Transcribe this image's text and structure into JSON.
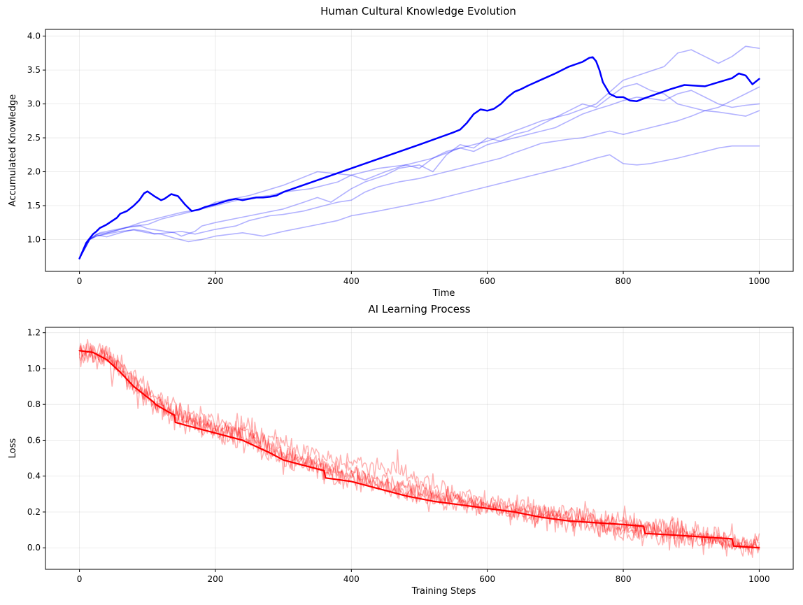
{
  "figure": {
    "suptitle": "Human Cultural Knowledge Evolution"
  },
  "chart_data": [
    {
      "type": "line",
      "title": "",
      "xlabel": "Time",
      "ylabel": "Accumulated Knowledge",
      "xlim": [
        -50,
        1050
      ],
      "ylim": [
        0.53,
        4.1
      ],
      "xticks": [
        0,
        200,
        400,
        600,
        800,
        1000
      ],
      "yticks": [
        1.0,
        1.5,
        2.0,
        2.5,
        3.0,
        3.5,
        4.0
      ],
      "xtick_labels": [
        "0",
        "200",
        "400",
        "600",
        "800",
        "1000"
      ],
      "ytick_labels": [
        "1.0",
        "1.5",
        "2.0",
        "2.5",
        "3.0",
        "3.5",
        "4.0"
      ],
      "grid": true,
      "series": [
        {
          "color": "#0000ff",
          "opacity": 1.0,
          "width": 2.5,
          "x": [
            0,
            10,
            20,
            25,
            30,
            40,
            55,
            60,
            70,
            80,
            88,
            95,
            100,
            110,
            120,
            125,
            135,
            145,
            155,
            165,
            175,
            185,
            200,
            210,
            220,
            230,
            240,
            250,
            260,
            270,
            280,
            290,
            300,
            400,
            500,
            550,
            560,
            570,
            580,
            590,
            600,
            610,
            620,
            630,
            640,
            650,
            660,
            680,
            700,
            720,
            740,
            750,
            755,
            760,
            765,
            770,
            780,
            790,
            800,
            810,
            820,
            830,
            850,
            870,
            890,
            920,
            940,
            960,
            970,
            980,
            990,
            1000
          ],
          "y": [
            0.72,
            0.95,
            1.08,
            1.12,
            1.17,
            1.22,
            1.32,
            1.38,
            1.42,
            1.5,
            1.58,
            1.68,
            1.71,
            1.64,
            1.58,
            1.6,
            1.67,
            1.64,
            1.52,
            1.42,
            1.44,
            1.48,
            1.52,
            1.55,
            1.58,
            1.6,
            1.58,
            1.6,
            1.62,
            1.62,
            1.63,
            1.65,
            1.7,
            2.05,
            2.4,
            2.58,
            2.62,
            2.72,
            2.85,
            2.92,
            2.9,
            2.93,
            3.0,
            3.1,
            3.18,
            3.22,
            3.27,
            3.36,
            3.45,
            3.55,
            3.62,
            3.68,
            3.69,
            3.63,
            3.5,
            3.32,
            3.15,
            3.1,
            3.1,
            3.05,
            3.04,
            3.08,
            3.15,
            3.22,
            3.28,
            3.26,
            3.32,
            3.38,
            3.45,
            3.42,
            3.29,
            3.37
          ]
        },
        {
          "color": "#0000ff",
          "opacity": 0.3,
          "width": 1.6,
          "x": [
            0,
            15,
            30,
            50,
            70,
            90,
            100,
            120,
            140,
            150,
            170,
            180,
            200,
            250,
            300,
            330,
            350,
            370,
            400,
            420,
            450,
            470,
            500,
            520,
            540,
            560,
            580,
            600,
            620,
            640,
            660,
            680,
            700,
            720,
            740,
            760,
            780,
            800,
            820,
            840,
            860,
            880,
            900,
            920,
            940,
            960,
            980,
            1000
          ],
          "y": [
            0.72,
            1.0,
            1.1,
            1.14,
            1.18,
            1.2,
            1.16,
            1.13,
            1.1,
            1.05,
            1.12,
            1.2,
            1.25,
            1.35,
            1.45,
            1.55,
            1.62,
            1.55,
            1.75,
            1.85,
            1.95,
            2.05,
            2.1,
            2.0,
            2.25,
            2.4,
            2.35,
            2.5,
            2.45,
            2.55,
            2.6,
            2.7,
            2.8,
            2.9,
            3.0,
            2.95,
            3.1,
            3.25,
            3.3,
            3.2,
            3.15,
            3.0,
            2.95,
            2.9,
            2.88,
            2.85,
            2.82,
            2.9
          ]
        },
        {
          "color": "#0000ff",
          "opacity": 0.3,
          "width": 1.6,
          "x": [
            0,
            15,
            25,
            40,
            60,
            80,
            100,
            120,
            140,
            160,
            180,
            200,
            240,
            280,
            300,
            340,
            380,
            400,
            420,
            450,
            480,
            500,
            520,
            540,
            560,
            580,
            600,
            620,
            640,
            660,
            680,
            700,
            720,
            740,
            760,
            780,
            800,
            820,
            840,
            860,
            880,
            900,
            920,
            940,
            960,
            980,
            1000
          ],
          "y": [
            0.72,
            1.0,
            1.08,
            1.1,
            1.15,
            1.2,
            1.22,
            1.3,
            1.35,
            1.4,
            1.45,
            1.5,
            1.6,
            1.65,
            1.7,
            1.75,
            1.85,
            1.95,
            1.88,
            2.0,
            2.1,
            2.05,
            2.2,
            2.3,
            2.35,
            2.3,
            2.4,
            2.45,
            2.5,
            2.55,
            2.6,
            2.65,
            2.75,
            2.85,
            2.92,
            2.98,
            3.05,
            3.1,
            3.08,
            3.05,
            3.15,
            3.2,
            3.1,
            3.0,
            2.95,
            2.98,
            3.0
          ]
        },
        {
          "color": "#0000ff",
          "opacity": 0.3,
          "width": 1.6,
          "x": [
            0,
            15,
            25,
            40,
            60,
            80,
            100,
            110,
            130,
            150,
            170,
            200,
            230,
            250,
            280,
            300,
            330,
            360,
            380,
            400,
            420,
            440,
            470,
            500,
            520,
            540,
            560,
            580,
            600,
            620,
            640,
            660,
            680,
            700,
            720,
            740,
            760,
            780,
            800,
            820,
            840,
            860,
            880,
            900,
            920,
            940,
            960,
            980,
            1000
          ],
          "y": [
            0.72,
            1.0,
            1.07,
            1.04,
            1.1,
            1.15,
            1.12,
            1.08,
            1.1,
            1.12,
            1.08,
            1.15,
            1.2,
            1.28,
            1.35,
            1.37,
            1.42,
            1.5,
            1.55,
            1.58,
            1.7,
            1.78,
            1.85,
            1.9,
            1.95,
            2.0,
            2.05,
            2.1,
            2.15,
            2.2,
            2.28,
            2.35,
            2.42,
            2.45,
            2.48,
            2.5,
            2.55,
            2.6,
            2.55,
            2.6,
            2.65,
            2.7,
            2.75,
            2.82,
            2.9,
            2.95,
            3.05,
            3.15,
            3.25
          ]
        },
        {
          "color": "#0000ff",
          "opacity": 0.3,
          "width": 1.6,
          "x": [
            0,
            15,
            25,
            40,
            60,
            80,
            100,
            120,
            140,
            160,
            180,
            200,
            240,
            270,
            300,
            340,
            380,
            400,
            440,
            480,
            520,
            560,
            600,
            640,
            680,
            720,
            760,
            780,
            800,
            820,
            840,
            880,
            920,
            940,
            960,
            980,
            1000
          ],
          "y": [
            0.72,
            1.0,
            1.05,
            1.08,
            1.12,
            1.14,
            1.1,
            1.08,
            1.02,
            0.97,
            1.0,
            1.05,
            1.1,
            1.05,
            1.12,
            1.2,
            1.28,
            1.35,
            1.42,
            1.5,
            1.58,
            1.68,
            1.78,
            1.88,
            1.98,
            2.08,
            2.2,
            2.25,
            2.12,
            2.1,
            2.12,
            2.2,
            2.3,
            2.35,
            2.38,
            2.38,
            2.38
          ]
        },
        {
          "color": "#0000ff",
          "opacity": 0.3,
          "width": 1.6,
          "x": [
            0,
            15,
            25,
            50,
            70,
            90,
            110,
            130,
            150,
            180,
            200,
            250,
            300,
            350,
            400,
            440,
            480,
            520,
            560,
            600,
            640,
            680,
            720,
            760,
            800,
            830,
            860,
            880,
            900,
            920,
            940,
            960,
            980,
            1000
          ],
          "y": [
            0.72,
            1.0,
            1.05,
            1.12,
            1.18,
            1.25,
            1.3,
            1.35,
            1.4,
            1.45,
            1.55,
            1.65,
            1.8,
            2.0,
            1.95,
            2.05,
            2.1,
            2.2,
            2.35,
            2.45,
            2.6,
            2.75,
            2.85,
            3.0,
            3.35,
            3.45,
            3.55,
            3.75,
            3.8,
            3.7,
            3.6,
            3.7,
            3.85,
            3.82
          ]
        }
      ]
    },
    {
      "type": "line",
      "title": "AI Learning Process",
      "xlabel": "Training Steps",
      "ylabel": "Loss",
      "xlim": [
        -50,
        1050
      ],
      "ylim": [
        -0.12,
        1.23
      ],
      "xticks": [
        0,
        200,
        400,
        600,
        800,
        1000
      ],
      "yticks": [
        0.0,
        0.2,
        0.4,
        0.6,
        0.8,
        1.0,
        1.2
      ],
      "xtick_labels": [
        "0",
        "200",
        "400",
        "600",
        "800",
        "1000"
      ],
      "ytick_labels": [
        "0.0",
        "0.2",
        "0.4",
        "0.6",
        "0.8",
        "1.0",
        "1.2"
      ],
      "grid": true,
      "series": [
        {
          "color": "#ff0000",
          "opacity": 1.0,
          "width": 2.2,
          "x": [
            0,
            20,
            40,
            60,
            80,
            100,
            110,
            112,
            130,
            140,
            141,
            160,
            200,
            240,
            280,
            300,
            340,
            360,
            362,
            400,
            440,
            480,
            520,
            560,
            600,
            640,
            680,
            720,
            760,
            800,
            830,
            832,
            880,
            920,
            960,
            962,
            980,
            1000
          ],
          "y": [
            1.1,
            1.09,
            1.05,
            0.98,
            0.9,
            0.84,
            0.81,
            0.8,
            0.76,
            0.74,
            0.7,
            0.68,
            0.64,
            0.6,
            0.53,
            0.49,
            0.45,
            0.43,
            0.39,
            0.37,
            0.33,
            0.29,
            0.26,
            0.24,
            0.22,
            0.2,
            0.17,
            0.15,
            0.14,
            0.13,
            0.12,
            0.08,
            0.07,
            0.06,
            0.05,
            0.01,
            0.005,
            0.0
          ]
        },
        {
          "color": "#ff0000",
          "opacity": 0.3,
          "width": 1.5,
          "noise": 0.025,
          "x": [
            0,
            40,
            80,
            120,
            160,
            200,
            240,
            280,
            320,
            360,
            400,
            440,
            480,
            520,
            560,
            600,
            640,
            680,
            720,
            760,
            800,
            840,
            880,
            920,
            960,
            1000
          ],
          "y": [
            1.1,
            1.07,
            0.93,
            0.78,
            0.72,
            0.68,
            0.64,
            0.57,
            0.5,
            0.45,
            0.42,
            0.38,
            0.34,
            0.3,
            0.27,
            0.24,
            0.21,
            0.19,
            0.16,
            0.14,
            0.11,
            0.09,
            0.07,
            0.05,
            0.03,
            0.02
          ]
        },
        {
          "color": "#ff0000",
          "opacity": 0.3,
          "width": 1.5,
          "noise": 0.035,
          "x": [
            0,
            40,
            80,
            120,
            160,
            200,
            240,
            280,
            320,
            360,
            400,
            440,
            480,
            520,
            560,
            600,
            640,
            680,
            720,
            760,
            800,
            840,
            880,
            920,
            960,
            1000
          ],
          "y": [
            1.1,
            1.05,
            0.9,
            0.8,
            0.7,
            0.66,
            0.67,
            0.6,
            0.55,
            0.5,
            0.48,
            0.46,
            0.42,
            0.34,
            0.28,
            0.25,
            0.22,
            0.2,
            0.18,
            0.17,
            0.15,
            0.13,
            0.1,
            0.08,
            0.05,
            0.03
          ]
        },
        {
          "color": "#ff0000",
          "opacity": 0.3,
          "width": 1.5,
          "noise": 0.03,
          "x": [
            0,
            40,
            80,
            120,
            160,
            200,
            240,
            280,
            320,
            360,
            400,
            440,
            480,
            520,
            560,
            600,
            640,
            680,
            720,
            760,
            800,
            840,
            880,
            920,
            960,
            1000
          ],
          "y": [
            1.1,
            1.06,
            0.92,
            0.77,
            0.69,
            0.64,
            0.6,
            0.52,
            0.46,
            0.42,
            0.38,
            0.34,
            0.3,
            0.27,
            0.25,
            0.23,
            0.21,
            0.18,
            0.16,
            0.13,
            0.1,
            0.08,
            0.06,
            0.04,
            0.02,
            0.01
          ]
        },
        {
          "color": "#ff0000",
          "opacity": 0.3,
          "width": 1.5,
          "noise": 0.03,
          "x": [
            0,
            40,
            80,
            120,
            160,
            200,
            240,
            280,
            320,
            360,
            400,
            440,
            480,
            520,
            560,
            600,
            640,
            680,
            720,
            760,
            800,
            840,
            880,
            920,
            960,
            1000
          ],
          "y": [
            1.1,
            1.07,
            0.95,
            0.82,
            0.74,
            0.7,
            0.65,
            0.56,
            0.49,
            0.44,
            0.4,
            0.37,
            0.33,
            0.29,
            0.26,
            0.23,
            0.2,
            0.18,
            0.15,
            0.12,
            0.1,
            0.12,
            0.1,
            0.05,
            0.02,
            0.02
          ]
        },
        {
          "color": "#ff0000",
          "opacity": 0.3,
          "width": 1.5,
          "noise": 0.028,
          "x": [
            0,
            40,
            80,
            120,
            160,
            200,
            240,
            280,
            320,
            360,
            400,
            440,
            480,
            520,
            560,
            600,
            640,
            680,
            720,
            760,
            800,
            840,
            880,
            920,
            960,
            1000
          ],
          "y": [
            1.1,
            1.06,
            0.91,
            0.79,
            0.71,
            0.67,
            0.62,
            0.55,
            0.48,
            0.43,
            0.39,
            0.35,
            0.31,
            0.28,
            0.26,
            0.24,
            0.22,
            0.19,
            0.17,
            0.15,
            0.13,
            0.1,
            0.08,
            0.05,
            0.03,
            0.01
          ]
        }
      ]
    }
  ]
}
